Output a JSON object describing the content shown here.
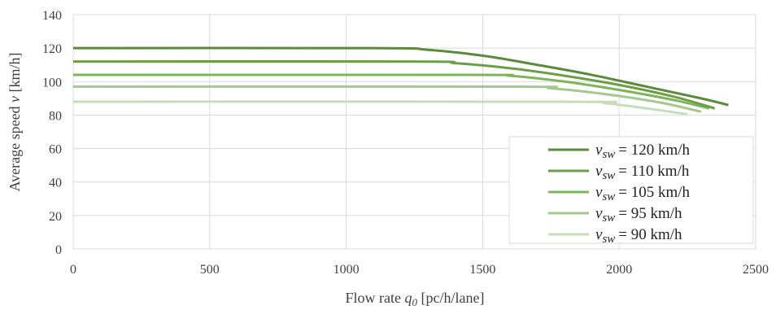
{
  "chart_data": {
    "type": "line",
    "xlabel_prefix": "Flow rate ",
    "xlabel_var": "q",
    "xlabel_sub": "0",
    "xlabel_suffix": " [pc/h/lane]",
    "ylabel_prefix": "Average speed ",
    "ylabel_var": "v",
    "ylabel_suffix": " [km/h]",
    "xlim": [
      0,
      2500
    ],
    "ylim": [
      0,
      140
    ],
    "xticks": [
      "0",
      "500",
      "1000",
      "1500",
      "2000",
      "2500"
    ],
    "yticks": [
      "0",
      "20",
      "40",
      "60",
      "80",
      "100",
      "120",
      "140"
    ],
    "grid": true,
    "legend_position": "bottom-right",
    "legend_var": "v",
    "legend_sub": "sw",
    "series": [
      {
        "name": "= 120 km/h",
        "color": "#5a8a3c",
        "x": [
          0,
          1100,
          1300,
          1500,
          1700,
          1900,
          2100,
          2300,
          2400
        ],
        "y": [
          120,
          120,
          119,
          115.5,
          110,
          104,
          97,
          90,
          86
        ]
      },
      {
        "name": "= 110 km/h",
        "color": "#6b9e45",
        "x": [
          0,
          1250,
          1400,
          1600,
          1800,
          2000,
          2200,
          2350
        ],
        "y": [
          112,
          112,
          111,
          108,
          103.5,
          98,
          91,
          84
        ]
      },
      {
        "name": "= 105 km/h",
        "color": "#7fb55a",
        "x": [
          0,
          1450,
          1600,
          1800,
          2000,
          2200,
          2330
        ],
        "y": [
          104,
          104,
          103.5,
          100,
          95,
          89,
          84
        ]
      },
      {
        "name": "= 95 km/h",
        "color": "#a3c98e",
        "x": [
          0,
          1600,
          1750,
          1950,
          2150,
          2300
        ],
        "y": [
          97,
          97,
          96,
          92.5,
          87.5,
          82
        ]
      },
      {
        "name": "= 90 km/h",
        "color": "#c7ddb9",
        "x": [
          0,
          1800,
          1950,
          2100,
          2250
        ],
        "y": [
          88,
          88,
          87,
          84,
          80.5
        ]
      }
    ]
  }
}
